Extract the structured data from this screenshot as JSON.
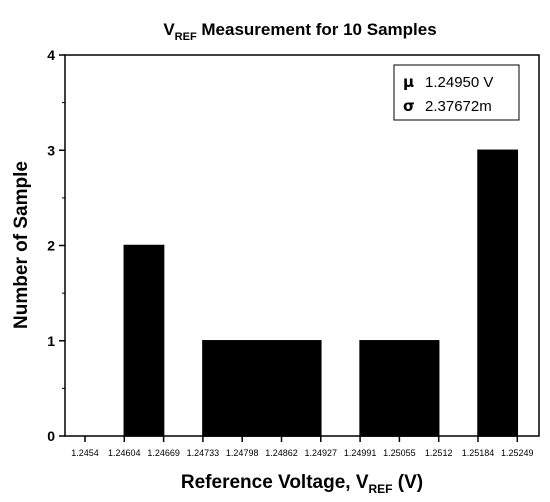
{
  "chart_data": {
    "type": "bar",
    "title_main": "V",
    "title_sub": "REF",
    "title_rest": " Measurement for 10 Samples",
    "xlabel_main": "Reference Voltage, V",
    "xlabel_sub": "REF",
    "xlabel_rest": " (V)",
    "ylabel": "Number of Sample",
    "x_ticks": [
      "1.2454",
      "1.24604",
      "1.24669",
      "1.24733",
      "1.24798",
      "1.24862",
      "1.24927",
      "1.24991",
      "1.25055",
      "1.2512",
      "1.25184",
      "1.25249"
    ],
    "bars": [
      {
        "from": 1,
        "to": 2,
        "value": 2
      },
      {
        "from": 3,
        "to": 6,
        "value": 1
      },
      {
        "from": 7,
        "to": 9,
        "value": 1
      },
      {
        "from": 10,
        "to": 11,
        "value": 3
      }
    ],
    "y_ticks": [
      0,
      1,
      2,
      3,
      4
    ],
    "ylim": [
      0,
      4
    ],
    "grid": false,
    "legend": {
      "mu_symbol": "μ",
      "mu_value": "1.24950 V",
      "sigma_symbol": "σ",
      "sigma_value": "2.37672m"
    },
    "colors": {
      "bar": "#000000",
      "axis": "#000000"
    }
  }
}
